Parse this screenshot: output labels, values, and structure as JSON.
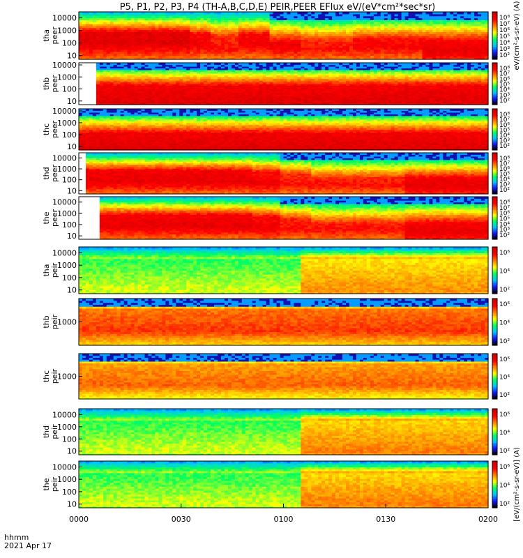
{
  "chart_data": {
    "type": "heatmap",
    "title": "P5, P1, P2, P3, P4 (TH-A,B,C,D,E) PEIR,PEER EFlux eV/(eV*cm²*sec*sr)",
    "x_axis": {
      "label_line1": "hhmm",
      "label_line2": "2021 Apr 17",
      "ticks": [
        "0000",
        "0030",
        "0100",
        "0130",
        "0200"
      ],
      "range_minutes": [
        0,
        120
      ]
    },
    "colormap": [
      "#000000",
      "#1818ff",
      "#00c8ff",
      "#00ff60",
      "#ffff00",
      "#ff8000",
      "#ff0000",
      "#cc0000",
      "#ffffff"
    ],
    "panels": [
      {
        "label_top": "tha",
        "label_bottom": "peer",
        "yticks": [
          "10",
          "100",
          "1000",
          "10000"
        ],
        "ylog": [
          5,
          30000
        ],
        "start_minutes": 0,
        "cb_ticks": [
          "10⁸",
          "10⁷",
          "10⁶",
          "10⁵",
          "10⁴",
          "10³",
          "10²"
        ],
        "cb_label": "eV/(cm²-s-sr-eV) (A)",
        "segments": [
          {
            "t0": 0,
            "t1": 32,
            "lo": 0.35,
            "hi": 0.55,
            "peak": 0.95,
            "top": 0.9
          },
          {
            "t0": 32,
            "t1": 38,
            "lo": 0.3,
            "hi": 0.5,
            "peak": 0.9,
            "top": 0.9
          },
          {
            "t0": 38,
            "t1": 46,
            "lo": 0.2,
            "hi": 0.45,
            "peak": 0.85,
            "top": 0.85
          },
          {
            "t0": 46,
            "t1": 55,
            "lo": 0.3,
            "hi": 0.5,
            "peak": 0.9,
            "top": 0.9
          },
          {
            "t0": 55,
            "t1": 65,
            "lo": 0.25,
            "hi": 0.35,
            "peak": 0.9,
            "top": 0.75
          },
          {
            "t0": 65,
            "t1": 80,
            "lo": 0.2,
            "hi": 0.35,
            "peak": 0.85,
            "top": 0.6
          },
          {
            "t0": 80,
            "t1": 100,
            "lo": 0.25,
            "hi": 0.4,
            "peak": 0.88,
            "top": 0.6
          },
          {
            "t0": 100,
            "t1": 120,
            "lo": 0.15,
            "hi": 0.35,
            "peak": 0.92,
            "top": 0.6
          }
        ]
      },
      {
        "label_top": "thb",
        "label_bottom": "peer",
        "yticks": [
          "10",
          "100",
          "1000",
          "10000"
        ],
        "ylog": [
          5,
          15000
        ],
        "start_minutes": 5,
        "cb_ticks": [
          "10⁸",
          "10⁷",
          "10⁶",
          "10⁵",
          "10⁴",
          "10³",
          "10²"
        ],
        "cb_label": "",
        "segments": [
          {
            "t0": 5,
            "t1": 120,
            "lo": 0.0,
            "hi": 0.4,
            "peak": 0.95,
            "top": 0.7
          }
        ]
      },
      {
        "label_top": "thc",
        "label_bottom": "peer",
        "yticks": [
          "10",
          "100",
          "1000",
          "10000"
        ],
        "ylog": [
          5,
          15000
        ],
        "start_minutes": 0,
        "cb_ticks": [
          "10⁸",
          "10⁷",
          "10⁶",
          "10⁵",
          "10⁴",
          "10³",
          "10²"
        ],
        "cb_label": "",
        "segments": [
          {
            "t0": 0,
            "t1": 120,
            "lo": 0.0,
            "hi": 0.35,
            "peak": 0.95,
            "top": 0.6
          }
        ]
      },
      {
        "label_top": "thd",
        "label_bottom": "peer",
        "yticks": [
          "10",
          "100",
          "1000",
          "10000"
        ],
        "ylog": [
          5,
          30000
        ],
        "start_minutes": 2,
        "cb_ticks": [
          "10⁸",
          "10⁷",
          "10⁶",
          "10⁵",
          "10⁴",
          "10³",
          "10²"
        ],
        "cb_label": "",
        "segments": [
          {
            "t0": 2,
            "t1": 50,
            "lo": 0.3,
            "hi": 0.55,
            "peak": 0.92,
            "top": 0.9
          },
          {
            "t0": 50,
            "t1": 58,
            "lo": 0.25,
            "hi": 0.5,
            "peak": 0.9,
            "top": 0.85
          },
          {
            "t0": 58,
            "t1": 68,
            "lo": 0.2,
            "hi": 0.45,
            "peak": 0.85,
            "top": 0.7
          },
          {
            "t0": 68,
            "t1": 95,
            "lo": 0.2,
            "hi": 0.35,
            "peak": 0.85,
            "top": 0.6
          },
          {
            "t0": 95,
            "t1": 120,
            "lo": 0.15,
            "hi": 0.35,
            "peak": 0.92,
            "top": 0.6
          }
        ]
      },
      {
        "label_top": "the",
        "label_bottom": "peer",
        "yticks": [
          "10",
          "100",
          "1000",
          "10000"
        ],
        "ylog": [
          5,
          30000
        ],
        "start_minutes": 6,
        "cb_ticks": [
          "10⁸",
          "10⁷",
          "10⁶",
          "10⁵",
          "10⁴",
          "10³",
          "10²"
        ],
        "cb_label": "",
        "segments": [
          {
            "t0": 6,
            "t1": 50,
            "lo": 0.3,
            "hi": 0.55,
            "peak": 0.92,
            "top": 0.9
          },
          {
            "t0": 50,
            "t1": 58,
            "lo": 0.25,
            "hi": 0.5,
            "peak": 0.9,
            "top": 0.85
          },
          {
            "t0": 58,
            "t1": 68,
            "lo": 0.2,
            "hi": 0.45,
            "peak": 0.85,
            "top": 0.7
          },
          {
            "t0": 68,
            "t1": 95,
            "lo": 0.2,
            "hi": 0.35,
            "peak": 0.85,
            "top": 0.6
          },
          {
            "t0": 95,
            "t1": 120,
            "lo": 0.15,
            "hi": 0.35,
            "peak": 0.92,
            "top": 0.6
          }
        ]
      },
      {
        "label_top": "tha",
        "label_bottom": "peir",
        "yticks": [
          "10",
          "100",
          "1000",
          "10000"
        ],
        "ylog": [
          5,
          30000
        ],
        "start_minutes": 0,
        "cb_ticks": [
          "10⁶",
          "10⁴",
          "10²"
        ],
        "cb_label": "",
        "segments": [
          {
            "t0": 0,
            "t1": 65,
            "lo": 0.05,
            "hi": 0.75,
            "peak": 0.55,
            "top": 0.8
          },
          {
            "t0": 65,
            "t1": 120,
            "lo": 0.05,
            "hi": 0.75,
            "peak": 0.7,
            "top": 0.8
          }
        ]
      },
      {
        "label_top": "thb",
        "label_bottom": "peir",
        "yticks": [
          "1000"
        ],
        "ylog": [
          100,
          10000
        ],
        "start_minutes": 0,
        "cb_ticks": [
          "10⁶",
          "10⁴",
          "10²"
        ],
        "cb_label": "",
        "segments": [
          {
            "t0": 0,
            "t1": 120,
            "lo": 0.3,
            "hi": 0.75,
            "peak": 0.8,
            "top": 0.7
          }
        ]
      },
      {
        "label_top": "thc",
        "label_bottom": "peir",
        "yticks": [
          "1000"
        ],
        "ylog": [
          100,
          10000
        ],
        "start_minutes": 0,
        "cb_ticks": [
          "10⁶",
          "10⁴",
          "10²"
        ],
        "cb_label": "",
        "segments": [
          {
            "t0": 0,
            "t1": 120,
            "lo": 0.3,
            "hi": 0.75,
            "peak": 0.75,
            "top": 0.7
          }
        ]
      },
      {
        "label_top": "thd",
        "label_bottom": "peir",
        "yticks": [
          "10",
          "100",
          "1000",
          "10000"
        ],
        "ylog": [
          5,
          30000
        ],
        "start_minutes": 0,
        "cb_ticks": [
          "10⁶",
          "10⁴",
          "10²"
        ],
        "cb_label": "",
        "segments": [
          {
            "t0": 0,
            "t1": 65,
            "lo": 0.05,
            "hi": 0.75,
            "peak": 0.55,
            "top": 0.8
          },
          {
            "t0": 65,
            "t1": 120,
            "lo": 0.05,
            "hi": 0.75,
            "peak": 0.72,
            "top": 0.8
          }
        ]
      },
      {
        "label_top": "the",
        "label_bottom": "peir",
        "yticks": [
          "10",
          "100",
          "1000",
          "10000"
        ],
        "ylog": [
          5,
          30000
        ],
        "start_minutes": 0,
        "cb_ticks": [
          "10⁶",
          "10⁴",
          "10²"
        ],
        "cb_label": "[eV/(cm²-s-sr-eV)] (A)",
        "segments": [
          {
            "t0": 0,
            "t1": 65,
            "lo": 0.05,
            "hi": 0.75,
            "peak": 0.55,
            "top": 0.8
          },
          {
            "t0": 65,
            "t1": 120,
            "lo": 0.05,
            "hi": 0.75,
            "peak": 0.72,
            "top": 0.8
          }
        ]
      }
    ]
  }
}
